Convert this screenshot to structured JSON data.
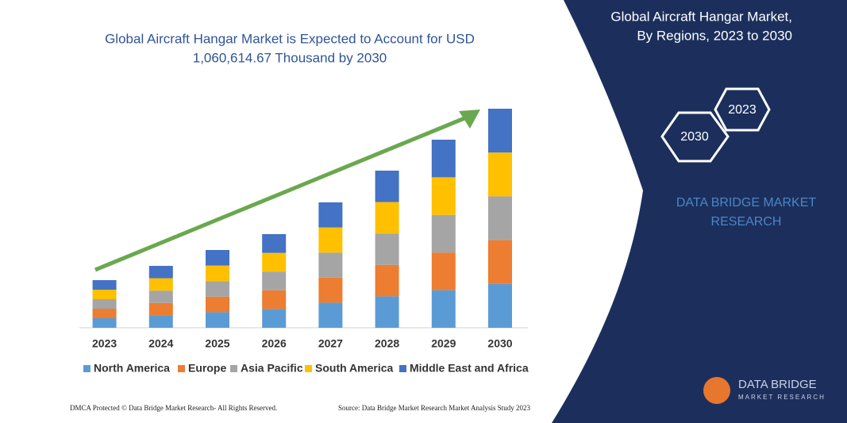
{
  "chart_data": {
    "type": "stacked-bar",
    "title": "Global Aircraft Hangar Market is Expected to Account for USD",
    "subtitle": "1,060,614.67 Thousand by 2030",
    "categories": [
      "2023",
      "2024",
      "2025",
      "2026",
      "2027",
      "2028",
      "2029",
      "2030"
    ],
    "series": [
      {
        "name": "North America",
        "color": "#5b9bd5",
        "values": [
          12,
          15.6,
          19.6,
          23.6,
          31.6,
          39.6,
          47.4,
          55.2
        ]
      },
      {
        "name": "Europe",
        "color": "#ed7d31",
        "values": [
          12,
          15.6,
          19.6,
          23.6,
          31.6,
          39.6,
          47.4,
          55.2
        ]
      },
      {
        "name": "Asia Pacific",
        "color": "#a5a5a5",
        "values": [
          12,
          15.6,
          19.6,
          23.6,
          31.6,
          39.6,
          47.4,
          55.2
        ]
      },
      {
        "name": "South America",
        "color": "#ffc000",
        "values": [
          12,
          15.6,
          19.6,
          23.6,
          31.6,
          39.6,
          47.4,
          55.2
        ]
      },
      {
        "name": "Middle East and Africa",
        "color": "#4472c4",
        "values": [
          12,
          15.6,
          19.6,
          23.6,
          31.6,
          39.6,
          47.4,
          55.2
        ]
      }
    ],
    "legend": "bottom"
  },
  "panel": {
    "title_line1": "Global Aircraft Hangar Market,",
    "title_line2": "By Regions, 2023 to 2030",
    "hex_start": "2023",
    "hex_end": "2030",
    "brand_line1": "DATA BRIDGE MARKET",
    "brand_line2": "RESEARCH",
    "logo_line1": "DATA BRIDGE",
    "logo_line2": "MARKET RESEARCH"
  },
  "footer": {
    "left": "DMCA Protected © Data Bridge Market Research-  All Rights Reserved.",
    "right": "Source: Data Bridge Market Research  Market Analysis Study 2023"
  }
}
